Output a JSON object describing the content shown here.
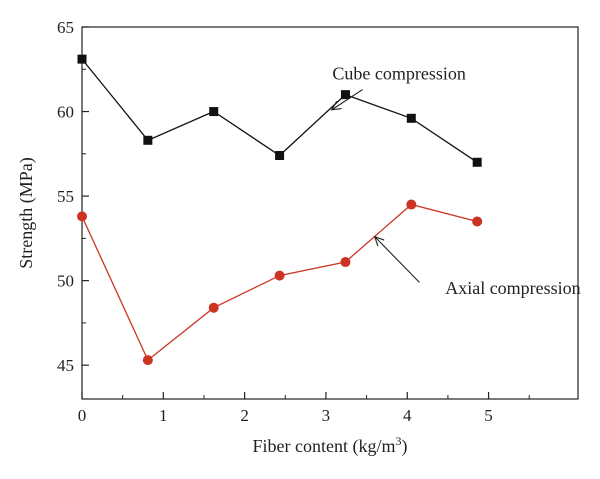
{
  "chart_data": {
    "type": "line",
    "xlabel": "Fiber content (kg/m",
    "xlabel_sup": "3",
    "xlabel_end": ")",
    "ylabel": "Strength (MPa)",
    "xlim": [
      0,
      6.1
    ],
    "ylim": [
      43,
      65
    ],
    "x_ticks": [
      0,
      1,
      2,
      3,
      4,
      5
    ],
    "x_ticks_minor": [
      0.5,
      1.5,
      2.5,
      3.5,
      4.5,
      5.5
    ],
    "y_ticks": [
      45,
      50,
      55,
      60,
      65
    ],
    "grid": false,
    "series": [
      {
        "name": "Cube compression",
        "color": "#111111",
        "marker": "square",
        "x": [
          0,
          0.81,
          1.62,
          2.43,
          3.24,
          4.05,
          4.86
        ],
        "y": [
          63.1,
          58.3,
          60.0,
          57.4,
          61.0,
          59.6,
          57.0
        ],
        "annotation_text": [
          3.9,
          61.9
        ],
        "annotation_arrow": [
          3.45,
          61.3,
          3.07,
          60.1
        ]
      },
      {
        "name": "Axial compression",
        "color": "#cc3322",
        "marker": "circle",
        "x": [
          0,
          0.81,
          1.62,
          2.43,
          3.24,
          4.05,
          4.86
        ],
        "y": [
          53.8,
          45.3,
          48.4,
          50.3,
          51.1,
          54.5,
          53.5
        ],
        "annotation_text": [
          5.3,
          49.2
        ],
        "annotation_arrow": [
          4.15,
          49.9,
          3.6,
          52.6
        ]
      }
    ]
  }
}
